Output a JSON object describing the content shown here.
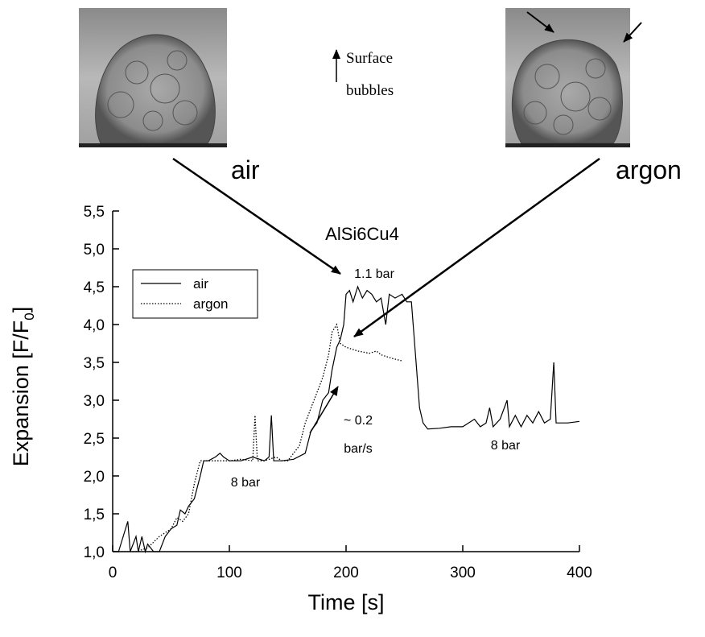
{
  "chart_data": {
    "type": "line",
    "title": "AlSi6Cu4",
    "xlabel": "Time  [s]",
    "ylabel_parts": [
      "Expansion  [F/F",
      "0",
      "]"
    ],
    "xlim": [
      0,
      400
    ],
    "ylim": [
      1.0,
      5.5
    ],
    "xticks": [
      0,
      100,
      200,
      300,
      400
    ],
    "yticks": [
      {
        "value": 1.0,
        "label": "1,0"
      },
      {
        "value": 1.5,
        "label": "1,5"
      },
      {
        "value": 2.0,
        "label": "2,0"
      },
      {
        "value": 2.5,
        "label": "2,5"
      },
      {
        "value": 3.0,
        "label": "3,0"
      },
      {
        "value": 3.5,
        "label": "3,5"
      },
      {
        "value": 4.0,
        "label": "4,0"
      },
      {
        "value": 4.5,
        "label": "4,5"
      },
      {
        "value": 5.0,
        "label": "5,0"
      },
      {
        "value": 5.5,
        "label": "5,5"
      }
    ],
    "legend": "upper left",
    "series": [
      {
        "name": "air",
        "color": "#000000",
        "line_style": "solid",
        "x": [
          5,
          13,
          15,
          20,
          22,
          25,
          28,
          30,
          35,
          40,
          45,
          50,
          55,
          58,
          62,
          65,
          70,
          75,
          78,
          82,
          88,
          92,
          95,
          100,
          110,
          120,
          130,
          134,
          136,
          138,
          145,
          155,
          165,
          170,
          175,
          180,
          185,
          188,
          192,
          195,
          198,
          200,
          203,
          206,
          210,
          214,
          218,
          222,
          226,
          230,
          234,
          237,
          242,
          248,
          252,
          256,
          260,
          263,
          266,
          270,
          280,
          290,
          300,
          310,
          315,
          320,
          323,
          326,
          332,
          338,
          340,
          345,
          350,
          355,
          360,
          365,
          370,
          375,
          378,
          380,
          390,
          400
        ],
        "values": [
          1.0,
          1.4,
          1.0,
          1.2,
          1.0,
          1.2,
          1.0,
          1.1,
          1.0,
          1.0,
          1.2,
          1.3,
          1.35,
          1.55,
          1.5,
          1.6,
          1.7,
          2.0,
          2.2,
          2.2,
          2.25,
          2.3,
          2.25,
          2.2,
          2.2,
          2.25,
          2.2,
          2.25,
          2.8,
          2.2,
          2.2,
          2.22,
          2.3,
          2.6,
          2.7,
          3.0,
          3.1,
          3.4,
          3.7,
          3.8,
          4.0,
          4.4,
          4.45,
          4.3,
          4.5,
          4.35,
          4.45,
          4.4,
          4.3,
          4.35,
          4.0,
          4.4,
          4.35,
          4.4,
          4.3,
          4.3,
          3.5,
          2.9,
          2.7,
          2.62,
          2.63,
          2.65,
          2.65,
          2.75,
          2.65,
          2.7,
          2.9,
          2.65,
          2.75,
          3.0,
          2.65,
          2.8,
          2.65,
          2.8,
          2.7,
          2.85,
          2.7,
          2.75,
          3.5,
          2.7,
          2.7,
          2.72
        ]
      },
      {
        "name": "argon",
        "color": "#000000",
        "line_style": "dotted",
        "x": [
          5,
          10,
          20,
          30,
          40,
          50,
          55,
          60,
          65,
          70,
          75,
          80,
          90,
          100,
          110,
          120,
          122,
          124,
          130,
          140,
          145,
          150,
          155,
          160,
          165,
          170,
          175,
          180,
          185,
          188,
          192,
          195,
          200,
          210,
          220,
          226,
          230,
          240,
          248
        ],
        "values": [
          1.0,
          1.0,
          1.0,
          1.05,
          1.2,
          1.3,
          1.45,
          1.4,
          1.5,
          1.9,
          2.2,
          2.2,
          2.2,
          2.2,
          2.22,
          2.2,
          2.8,
          2.2,
          2.2,
          2.25,
          2.2,
          2.2,
          2.3,
          2.4,
          2.7,
          2.9,
          3.1,
          3.3,
          3.6,
          3.9,
          4.0,
          3.75,
          3.7,
          3.65,
          3.62,
          3.65,
          3.6,
          3.55,
          3.52
        ]
      }
    ],
    "annotations": [
      "1.1 bar",
      "~ 0.2",
      "bar/s",
      "8 bar",
      "8 bar"
    ]
  },
  "photos": {
    "left_label": "air",
    "right_label": "argon",
    "note_line1": "Surface",
    "note_line2": "bubbles"
  }
}
